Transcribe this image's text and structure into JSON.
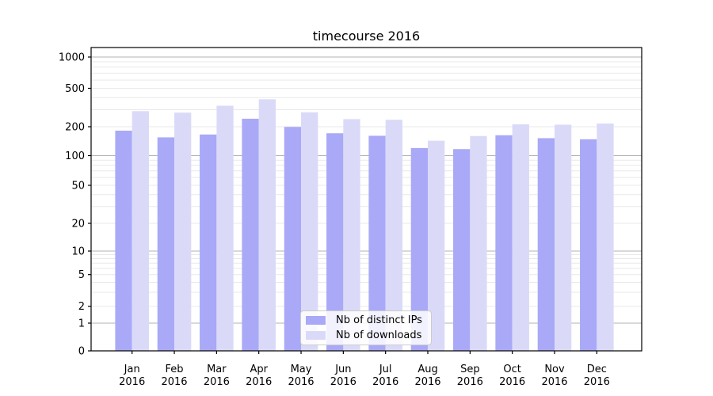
{
  "title": "timecourse 2016",
  "chart_data": {
    "type": "bar",
    "title": "timecourse 2016",
    "x_axis": {
      "categories": [
        "Jan",
        "Feb",
        "Mar",
        "Apr",
        "May",
        "Jun",
        "Jul",
        "Aug",
        "Sep",
        "Oct",
        "Nov",
        "Dec"
      ],
      "sub_label": "2016"
    },
    "y_axis": {
      "scale": "symlog",
      "tick_labels": [
        "0",
        "1",
        "2",
        "5",
        "10",
        "20",
        "50",
        "100",
        "200",
        "500",
        "1000"
      ],
      "ylim": [
        0,
        1000
      ]
    },
    "series": [
      {
        "name": "Nb of distinct IPs",
        "color": "#a9a9f8",
        "values": [
          182,
          155,
          166,
          242,
          199,
          171,
          161,
          120,
          117,
          163,
          152,
          148
        ]
      },
      {
        "name": "Nb of downloads",
        "color": "#dadaf8",
        "values": [
          290,
          280,
          330,
          385,
          282,
          240,
          236,
          143,
          160,
          212,
          210,
          216
        ]
      }
    ],
    "legend_position": "lower center",
    "grid": true
  },
  "colors": {
    "grid_major": "#b3b3b3",
    "grid_minor": "#e9e9e9",
    "axis": "#000000",
    "text": "#000000"
  }
}
